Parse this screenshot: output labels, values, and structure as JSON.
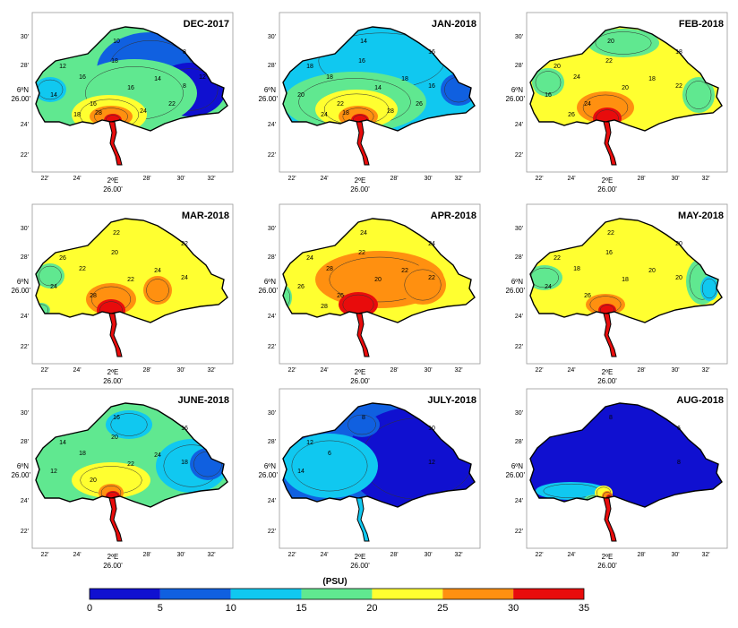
{
  "figure": {
    "unit_label": "(PSU)",
    "lat_main_label": "6ºN",
    "lat_main_value": "26.00'",
    "lon_main_label": "2ºE",
    "lon_main_value": "26.00'"
  },
  "chart_data": {
    "type": "heatmap",
    "colorbar": {
      "ticks": [
        "0",
        "5",
        "10",
        "15",
        "20",
        "25",
        "30",
        "35"
      ],
      "colors": [
        "#1010d0",
        "#1060e0",
        "#10c8f0",
        "#60e890",
        "#ffff30",
        "#ff9010",
        "#e80c0c"
      ],
      "range": [
        0,
        35
      ]
    },
    "panels": [
      {
        "title": "DEC-2017",
        "y_ticks": [
          "30'",
          "28'",
          "24'",
          "22'"
        ],
        "x_ticks": [
          "22'",
          "24'",
          "28'",
          "30'",
          "32'"
        ],
        "contour_labels": [
          "10",
          "8",
          "8",
          "12",
          "14",
          "16",
          "18",
          "16",
          "14",
          "16",
          "18",
          "22",
          "24",
          "28",
          "12"
        ]
      },
      {
        "title": "JAN-2018",
        "y_ticks": [
          "30'",
          "28'",
          "24'",
          "22'"
        ],
        "x_ticks": [
          "22'",
          "24'",
          "28'",
          "30'",
          "32'"
        ],
        "contour_labels": [
          "14",
          "16",
          "16",
          "18",
          "20",
          "18",
          "16",
          "14",
          "18",
          "22",
          "24",
          "26",
          "28",
          "18"
        ]
      },
      {
        "title": "FEB-2018",
        "y_ticks": [
          "30'",
          "28'",
          "24'",
          "22'"
        ],
        "x_ticks": [
          "22'",
          "24'",
          "28'",
          "30'",
          "32'"
        ],
        "contour_labels": [
          "20",
          "18",
          "22",
          "20",
          "16",
          "24",
          "22",
          "20",
          "18",
          "24",
          "26"
        ]
      },
      {
        "title": "MAR-2018",
        "y_ticks": [
          "30'",
          "28'",
          "24'",
          "22'"
        ],
        "x_ticks": [
          "22'",
          "24'",
          "28'",
          "30'",
          "32'"
        ],
        "contour_labels": [
          "22",
          "22",
          "24",
          "26",
          "24",
          "22",
          "20",
          "22",
          "24",
          "28"
        ]
      },
      {
        "title": "APR-2018",
        "y_ticks": [
          "30'",
          "28'",
          "24'",
          "22'"
        ],
        "x_ticks": [
          "22'",
          "24'",
          "28'",
          "30'",
          "32'"
        ],
        "contour_labels": [
          "24",
          "24",
          "22",
          "24",
          "26",
          "28",
          "22",
          "20",
          "22",
          "26",
          "28"
        ]
      },
      {
        "title": "MAY-2018",
        "y_ticks": [
          "30'",
          "28'",
          "24'",
          "22'"
        ],
        "x_ticks": [
          "22'",
          "24'",
          "28'",
          "30'",
          "32'"
        ],
        "contour_labels": [
          "22",
          "20",
          "20",
          "22",
          "24",
          "18",
          "16",
          "18",
          "20",
          "26"
        ]
      },
      {
        "title": "JUNE-2018",
        "y_ticks": [
          "30'",
          "28'",
          "24'",
          "22'"
        ],
        "x_ticks": [
          "22'",
          "24'",
          "28'",
          "30'",
          "32'"
        ],
        "contour_labels": [
          "16",
          "16",
          "18",
          "14",
          "12",
          "18",
          "20",
          "22",
          "24",
          "20"
        ]
      },
      {
        "title": "JULY-2018",
        "y_ticks": [
          "30'",
          "28'",
          "24'",
          "22'"
        ],
        "x_ticks": [
          "22'",
          "24'",
          "28'",
          "30'",
          "32'"
        ],
        "contour_labels": [
          "8",
          "10",
          "12",
          "12",
          "14",
          "6"
        ]
      },
      {
        "title": "AUG-2018",
        "y_ticks": [
          "30'",
          "28'",
          "24'",
          "22'"
        ],
        "x_ticks": [
          "22'",
          "24'",
          "28'",
          "30'",
          "32'"
        ],
        "contour_labels": [
          "8",
          "6",
          "8"
        ]
      }
    ]
  }
}
